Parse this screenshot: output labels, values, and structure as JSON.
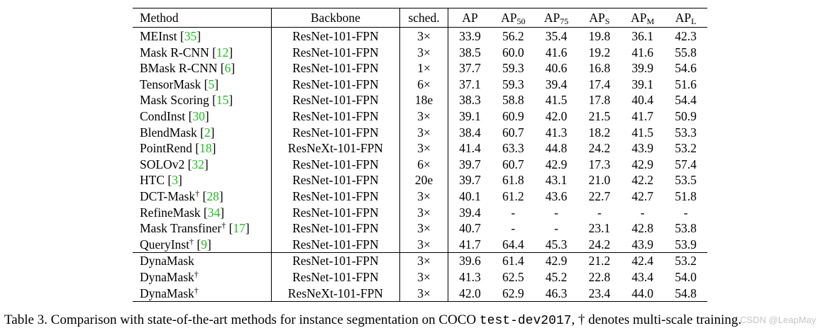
{
  "table": {
    "headers": {
      "method": "Method",
      "backbone": "Backbone",
      "sched": "sched.",
      "ap": "AP",
      "ap50_base": "AP",
      "ap50_sub": "50",
      "ap75_base": "AP",
      "ap75_sub": "75",
      "aps_base": "AP",
      "aps_sub": "S",
      "apm_base": "AP",
      "apm_sub": "M",
      "apl_base": "AP",
      "apl_sub": "L"
    },
    "rows": [
      {
        "method": "MEInst",
        "dagger": "",
        "ref": "35",
        "backbone": "ResNet-101-FPN",
        "sched": "3×",
        "ap": "33.9",
        "ap50": "56.2",
        "ap75": "35.4",
        "aps": "19.8",
        "apm": "36.1",
        "apl": "42.3"
      },
      {
        "method": "Mask R-CNN",
        "dagger": "",
        "ref": "12",
        "backbone": "ResNet-101-FPN",
        "sched": "3×",
        "ap": "38.5",
        "ap50": "60.0",
        "ap75": "41.6",
        "aps": "19.2",
        "apm": "41.6",
        "apl": "55.8"
      },
      {
        "method": "BMask R-CNN",
        "dagger": "",
        "ref": "6",
        "backbone": "ResNet-101-FPN",
        "sched": "1×",
        "ap": "37.7",
        "ap50": "59.3",
        "ap75": "40.6",
        "aps": "16.8",
        "apm": "39.9",
        "apl": "54.6"
      },
      {
        "method": "TensorMask",
        "dagger": "",
        "ref": "5",
        "backbone": "ResNet-101-FPN",
        "sched": "6×",
        "ap": "37.1",
        "ap50": "59.3",
        "ap75": "39.4",
        "aps": "17.4",
        "apm": "39.1",
        "apl": "51.6"
      },
      {
        "method": "Mask Scoring",
        "dagger": "",
        "ref": "15",
        "backbone": "ResNet-101-FPN",
        "sched": "18e",
        "ap": "38.3",
        "ap50": "58.8",
        "ap75": "41.5",
        "aps": "17.8",
        "apm": "40.4",
        "apl": "54.4"
      },
      {
        "method": "CondInst",
        "dagger": "",
        "ref": "30",
        "backbone": "ResNet-101-FPN",
        "sched": "3×",
        "ap": "39.1",
        "ap50": "60.9",
        "ap75": "42.0",
        "aps": "21.5",
        "apm": "41.7",
        "apl": "50.9"
      },
      {
        "method": "BlendMask",
        "dagger": "",
        "ref": "2",
        "backbone": "ResNet-101-FPN",
        "sched": "3×",
        "ap": "38.4",
        "ap50": "60.7",
        "ap75": "41.3",
        "aps": "18.2",
        "apm": "41.5",
        "apl": "53.3"
      },
      {
        "method": "PointRend",
        "dagger": "",
        "ref": "18",
        "backbone": "ResNeXt-101-FPN",
        "sched": "3×",
        "ap": "41.4",
        "ap50": "63.3",
        "ap75": "44.8",
        "aps": "24.2",
        "apm": "43.9",
        "apl": "53.2"
      },
      {
        "method": "SOLOv2",
        "dagger": "",
        "ref": "32",
        "backbone": "ResNet-101-FPN",
        "sched": "6×",
        "ap": "39.7",
        "ap50": "60.7",
        "ap75": "42.9",
        "aps": "17.3",
        "apm": "42.9",
        "apl": "57.4"
      },
      {
        "method": "HTC",
        "dagger": "",
        "ref": "3",
        "backbone": "ResNet-101-FPN",
        "sched": "20e",
        "ap": "39.7",
        "ap50": "61.8",
        "ap75": "43.1",
        "aps": "21.0",
        "apm": "42.2",
        "apl": "53.5"
      },
      {
        "method": "DCT-Mask",
        "dagger": "†",
        "ref": "28",
        "backbone": "ResNet-101-FPN",
        "sched": "3×",
        "ap": "40.1",
        "ap50": "61.2",
        "ap75": "43.6",
        "aps": "22.7",
        "apm": "42.7",
        "apl": "51.8"
      },
      {
        "method": "RefineMask",
        "dagger": "",
        "ref": "34",
        "backbone": "ResNet-101-FPN",
        "sched": "3×",
        "ap": "39.4",
        "ap50": "-",
        "ap75": "-",
        "aps": "-",
        "apm": "-",
        "apl": "-"
      },
      {
        "method": "Mask Transfiner",
        "dagger": "†",
        "ref": "17",
        "backbone": "ResNet-101-FPN",
        "sched": "3×",
        "ap": "40.7",
        "ap50": "-",
        "ap75": "-",
        "aps": "23.1",
        "apm": "42.8",
        "apl": "53.8"
      },
      {
        "method": "QueryInst",
        "dagger": "†",
        "ref": "9",
        "backbone": "ResNet-101-FPN",
        "sched": "3×",
        "ap": "41.7",
        "ap50": "64.4",
        "ap75": "45.3",
        "aps": "24.2",
        "apm": "43.9",
        "apl": "53.9"
      },
      {
        "method": "DynaMask",
        "dagger": "",
        "ref": "",
        "backbone": "ResNet-101-FPN",
        "sched": "3×",
        "ap": "39.6",
        "ap50": "61.4",
        "ap75": "42.9",
        "aps": "21.2",
        "apm": "42.4",
        "apl": "53.2"
      },
      {
        "method": "DynaMask",
        "dagger": "†",
        "ref": "",
        "backbone": "ResNet-101-FPN",
        "sched": "3×",
        "ap": "41.3",
        "ap50": "62.5",
        "ap75": "45.2",
        "aps": "22.8",
        "apm": "43.4",
        "apl": "54.0"
      },
      {
        "method": "DynaMask",
        "dagger": "†",
        "ref": "",
        "backbone": "ResNeXt-101-FPN",
        "sched": "3×",
        "ap": "42.0",
        "ap50": "62.9",
        "ap75": "46.3",
        "aps": "23.4",
        "apm": "44.0",
        "apl": "54.8"
      }
    ]
  },
  "caption": {
    "prefix": "Table 3. Comparison with state-of-the-art methods for instance segmentation on COCO ",
    "code": "test-dev2017",
    "suffix": ", † denotes multi-scale training."
  },
  "watermark": "CSDN @LeapMay"
}
